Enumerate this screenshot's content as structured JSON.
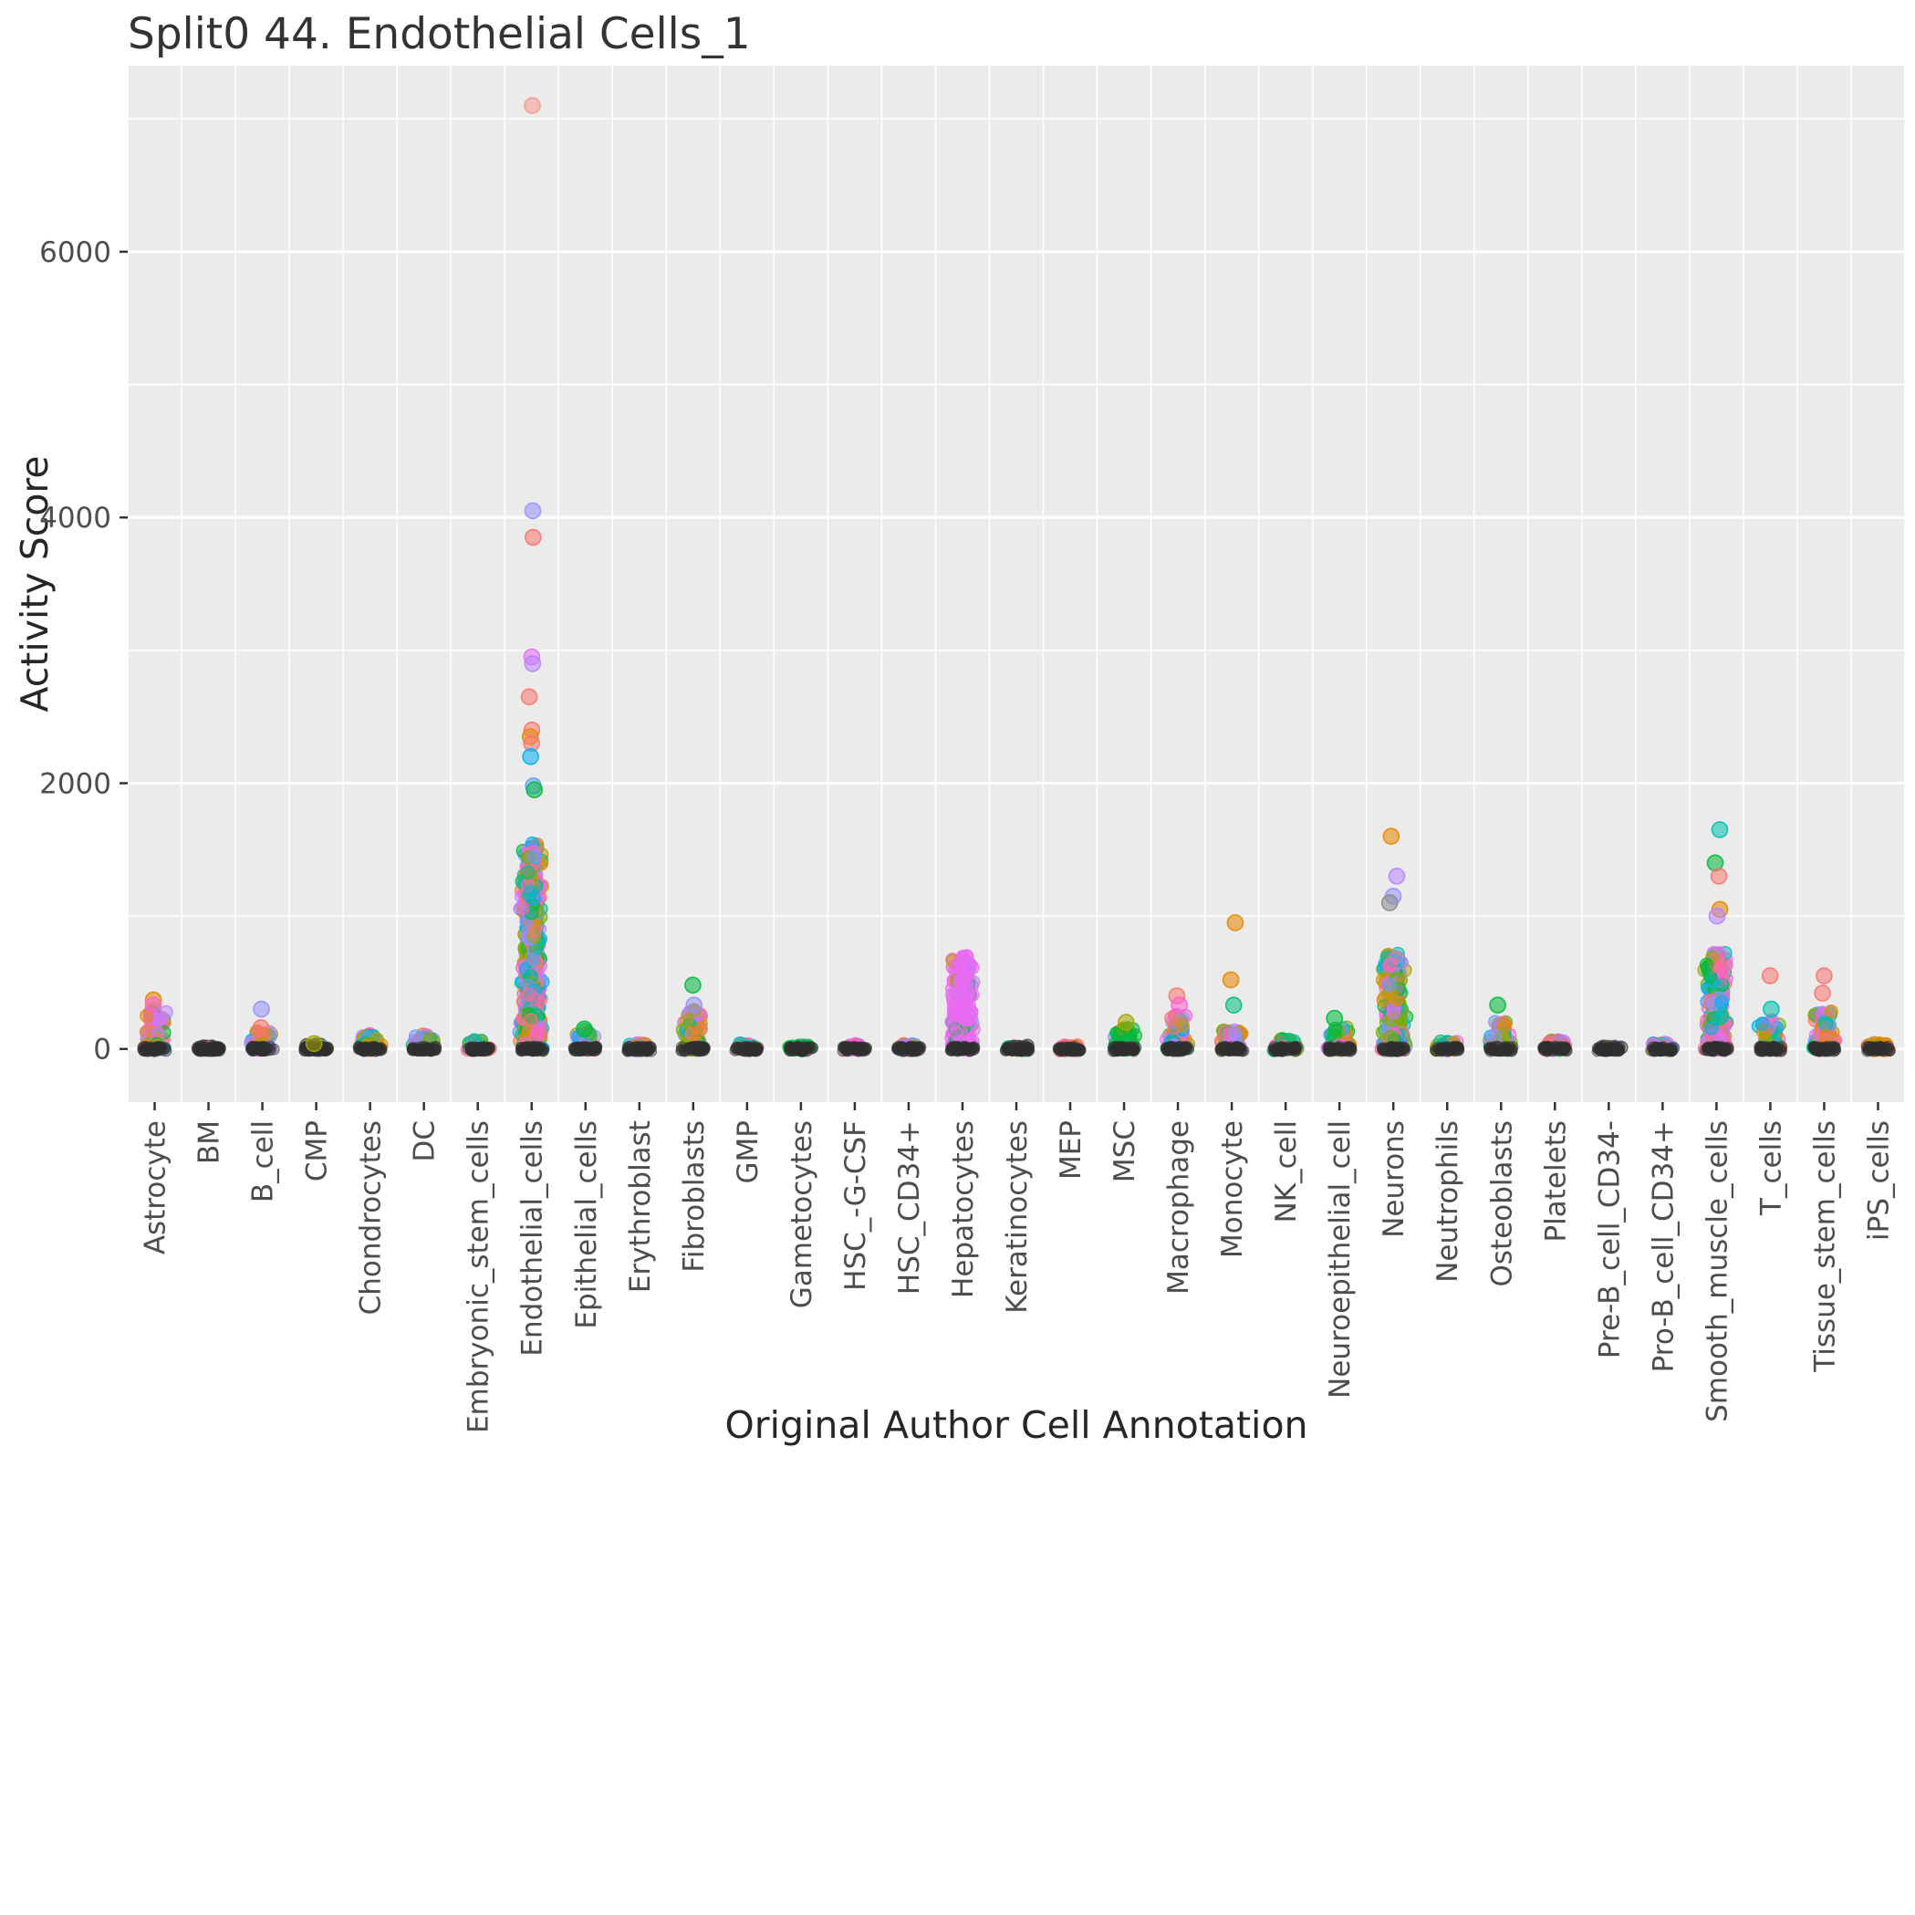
{
  "title": "Split0 44. Endothelial Cells_1",
  "chart_data": {
    "type": "scatter",
    "title": "Split0 44. Endothelial Cells_1",
    "xlabel": "Original Author Cell Annotation",
    "ylabel": "Activity Score",
    "ylim": [
      -400,
      7400
    ],
    "yticks": [
      0,
      2000,
      4000,
      6000
    ],
    "yticks_minor": [
      1000,
      3000,
      5000,
      7000
    ],
    "grid": true,
    "legend": "none",
    "panel_bg": "#EBEBEB",
    "grid_color": "#FFFFFF",
    "tick_color": "#333333",
    "tick_label_color": "#4D4D4D",
    "zero_cluster_color": "#303030",
    "palette": [
      "#F8766D",
      "#E58700",
      "#C99800",
      "#A3A500",
      "#6BB100",
      "#00BA38",
      "#00BF7D",
      "#00C0AF",
      "#00B0F6",
      "#619CFF",
      "#9590FF",
      "#B983FF",
      "#E76BF3",
      "#FD61D1",
      "#FF67A4"
    ],
    "categories": [
      {
        "label": "Astrocyte",
        "n": 130,
        "spread": 300,
        "outliers": [
          [
            370,
            "#E58700"
          ],
          [
            330,
            "#FD61D1"
          ]
        ]
      },
      {
        "label": "BM",
        "n": 60,
        "spread": 20,
        "dominant": "#4D4D4D"
      },
      {
        "label": "B_cell",
        "n": 90,
        "spread": 140,
        "outliers": [
          [
            300,
            "#9590FF"
          ],
          [
            160,
            "#F8766D"
          ]
        ]
      },
      {
        "label": "CMP",
        "n": 50,
        "spread": 30,
        "dominant": "#555555",
        "outliers": [
          [
            40,
            "#A3A500"
          ]
        ]
      },
      {
        "label": "Chondrocytes",
        "n": 100,
        "spread": 110
      },
      {
        "label": "DC",
        "n": 90,
        "spread": 110
      },
      {
        "label": "Embryonic_stem_cells",
        "n": 70,
        "spread": 60
      },
      {
        "label": "Endothelial_cells",
        "n": 750,
        "spread": 1550,
        "power": 1.6,
        "outliers": [
          [
            7100,
            "#F8988A"
          ],
          [
            4050,
            "#9590FF"
          ],
          [
            3850,
            "#F8766D"
          ],
          [
            2950,
            "#E76BF3"
          ],
          [
            2900,
            "#B983FF"
          ],
          [
            2650,
            "#F8766D"
          ],
          [
            2400,
            "#F8766D"
          ],
          [
            2350,
            "#E58700"
          ],
          [
            2300,
            "#F8766D"
          ],
          [
            2200,
            "#00B0F6"
          ],
          [
            1980,
            "#619CFF"
          ],
          [
            1950,
            "#00BA38"
          ]
        ]
      },
      {
        "label": "Epithelial_cells",
        "n": 80,
        "spread": 140,
        "outliers": [
          [
            150,
            "#00BA38"
          ]
        ]
      },
      {
        "label": "Erythroblast",
        "n": 60,
        "spread": 45
      },
      {
        "label": "Fibroblasts",
        "n": 130,
        "spread": 300,
        "outliers": [
          [
            480,
            "#00BA38"
          ],
          [
            330,
            "#9590FF"
          ]
        ]
      },
      {
        "label": "GMP",
        "n": 60,
        "spread": 35
      },
      {
        "label": "Gametocytes",
        "n": 50,
        "spread": 30,
        "dominant": "#00BA38"
      },
      {
        "label": "HSC_-G-CSF",
        "n": 60,
        "spread": 35,
        "dominant": "#FD61D1"
      },
      {
        "label": "HSC_CD34+",
        "n": 70,
        "spread": 40,
        "dominant": "#619CFF"
      },
      {
        "label": "Hepatocytes",
        "n": 420,
        "spread": 700,
        "power": 1.5,
        "dominant": "#E76BF3"
      },
      {
        "label": "Keratinocytes",
        "n": 50,
        "spread": 20,
        "dominant": "#4D4D4D"
      },
      {
        "label": "MEP",
        "n": 50,
        "spread": 30,
        "dominant": "#F8766D"
      },
      {
        "label": "MSC",
        "n": 100,
        "spread": 160,
        "dominant": "#00BA38",
        "outliers": [
          [
            200,
            "#A3A500"
          ]
        ]
      },
      {
        "label": "Macrophage",
        "n": 100,
        "spread": 260,
        "outliers": [
          [
            400,
            "#F8766D"
          ],
          [
            330,
            "#FD61D1"
          ]
        ]
      },
      {
        "label": "Monocyte",
        "n": 100,
        "spread": 140,
        "outliers": [
          [
            950,
            "#E58700"
          ],
          [
            520,
            "#E58700"
          ],
          [
            330,
            "#00BF7D"
          ]
        ]
      },
      {
        "label": "NK_cell",
        "n": 70,
        "spread": 70
      },
      {
        "label": "Neuroepithelial_cell",
        "n": 100,
        "spread": 160,
        "outliers": [
          [
            230,
            "#00BA38"
          ]
        ]
      },
      {
        "label": "Neurons",
        "n": 320,
        "spread": 720,
        "power": 1.6,
        "outliers": [
          [
            1600,
            "#E58700"
          ],
          [
            1300,
            "#B983FF"
          ],
          [
            1150,
            "#9590FF"
          ],
          [
            1100,
            "#8a8a8a"
          ]
        ]
      },
      {
        "label": "Neutrophils",
        "n": 60,
        "spread": 50
      },
      {
        "label": "Osteoblasts",
        "n": 90,
        "spread": 220,
        "outliers": [
          [
            330,
            "#00BA38"
          ]
        ]
      },
      {
        "label": "Platelets",
        "n": 60,
        "spread": 70
      },
      {
        "label": "Pre-B_cell_CD34-",
        "n": 50,
        "spread": 18,
        "dominant": "#4D4D4D"
      },
      {
        "label": "Pro-B_cell_CD34+",
        "n": 60,
        "spread": 45
      },
      {
        "label": "Smooth_muscle_cells",
        "n": 320,
        "spread": 720,
        "power": 1.6,
        "outliers": [
          [
            1650,
            "#00C0AF"
          ],
          [
            1400,
            "#00BA38"
          ],
          [
            1300,
            "#F8766D"
          ],
          [
            1050,
            "#E58700"
          ],
          [
            1000,
            "#B983FF"
          ]
        ]
      },
      {
        "label": "T_cells",
        "n": 90,
        "spread": 220,
        "outliers": [
          [
            550,
            "#F8766D"
          ],
          [
            300,
            "#00C0AF"
          ]
        ]
      },
      {
        "label": "Tissue_stem_cells",
        "n": 110,
        "spread": 280,
        "outliers": [
          [
            550,
            "#F8766D"
          ],
          [
            420,
            "#F8766D"
          ]
        ]
      },
      {
        "label": "iPS_cells",
        "n": 70,
        "spread": 45,
        "dominant": "#E58700"
      }
    ]
  }
}
